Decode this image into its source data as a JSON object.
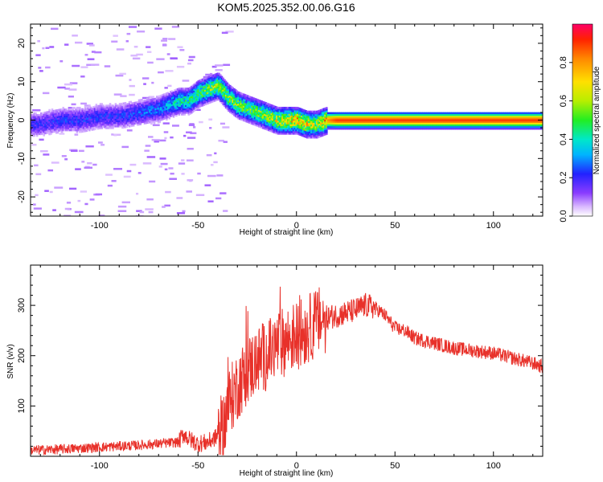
{
  "title": "KOM5.2025.352.00.06.G16",
  "chart_data": [
    {
      "type": "heatmap",
      "panel": "top",
      "xlabel": "Height of straight line (km)",
      "ylabel": "Frequency (Hz)",
      "xlim": [
        -135,
        125
      ],
      "ylim": [
        -25,
        25
      ],
      "xticks": [
        -100,
        -50,
        0,
        50,
        100
      ],
      "xtick_labels": [
        "-100",
        "-50",
        "0",
        "50",
        "100"
      ],
      "yticks": [
        -20,
        -10,
        0,
        10,
        20
      ],
      "ytick_labels": [
        "-20",
        "-10",
        "0",
        "10",
        "20"
      ],
      "ridge": {
        "x": [
          -130,
          -120,
          -110,
          -100,
          -90,
          -80,
          -70,
          -60,
          -55,
          -50,
          -45,
          -40,
          -35,
          -30,
          -25,
          -20,
          -15,
          -10,
          -5,
          0,
          5,
          10,
          15,
          20,
          40,
          60,
          80,
          100,
          125
        ],
        "y": [
          -1,
          0,
          0,
          1,
          1,
          2,
          3,
          5,
          5,
          7,
          8,
          9,
          6,
          4,
          3,
          2,
          1,
          0,
          0,
          0,
          -1,
          -1,
          0,
          0,
          0,
          0,
          0,
          0,
          0
        ],
        "amplitude": [
          0.2,
          0.22,
          0.22,
          0.22,
          0.22,
          0.25,
          0.28,
          0.4,
          0.45,
          0.5,
          0.55,
          0.6,
          0.55,
          0.55,
          0.5,
          0.55,
          0.6,
          0.65,
          0.7,
          0.75,
          0.7,
          0.6,
          0.8,
          0.9,
          0.9,
          0.9,
          0.9,
          0.9,
          0.9
        ]
      },
      "colorbar": {
        "label": "Normalized spectral amplitude",
        "range": [
          0,
          1
        ],
        "ticks": [
          0.0,
          0.2,
          0.4,
          0.6,
          0.8
        ],
        "tick_labels": [
          "0.0",
          "0.2",
          "0.4",
          "0.6",
          "0.8"
        ]
      }
    },
    {
      "type": "line",
      "panel": "bottom",
      "xlabel": "Height of straight line (km)",
      "ylabel": "SNR (v/v)",
      "xlim": [
        -135,
        125
      ],
      "ylim": [
        0,
        380
      ],
      "xticks": [
        -100,
        -50,
        0,
        50,
        100
      ],
      "xtick_labels": [
        "-100",
        "-50",
        "0",
        "50",
        "100"
      ],
      "yticks": [
        100,
        200,
        300
      ],
      "ytick_labels": [
        "100",
        "200",
        "300"
      ],
      "series": [
        {
          "name": "SNR",
          "color": "#e8312a",
          "x": [
            -135,
            -120,
            -100,
            -80,
            -60,
            -57,
            -55,
            -50,
            -45,
            -40,
            -37,
            -35,
            -30,
            -25,
            -20,
            -15,
            -10,
            -5,
            0,
            5,
            10,
            15,
            20,
            30,
            35,
            40,
            45,
            50,
            55,
            60,
            70,
            80,
            90,
            100,
            110,
            120,
            125
          ],
          "y": [
            12,
            14,
            18,
            22,
            28,
            45,
            35,
            25,
            28,
            40,
            60,
            100,
            140,
            170,
            190,
            200,
            220,
            230,
            240,
            250,
            265,
            275,
            280,
            290,
            300,
            295,
            280,
            255,
            250,
            235,
            225,
            215,
            210,
            205,
            195,
            185,
            178
          ]
        }
      ]
    }
  ]
}
